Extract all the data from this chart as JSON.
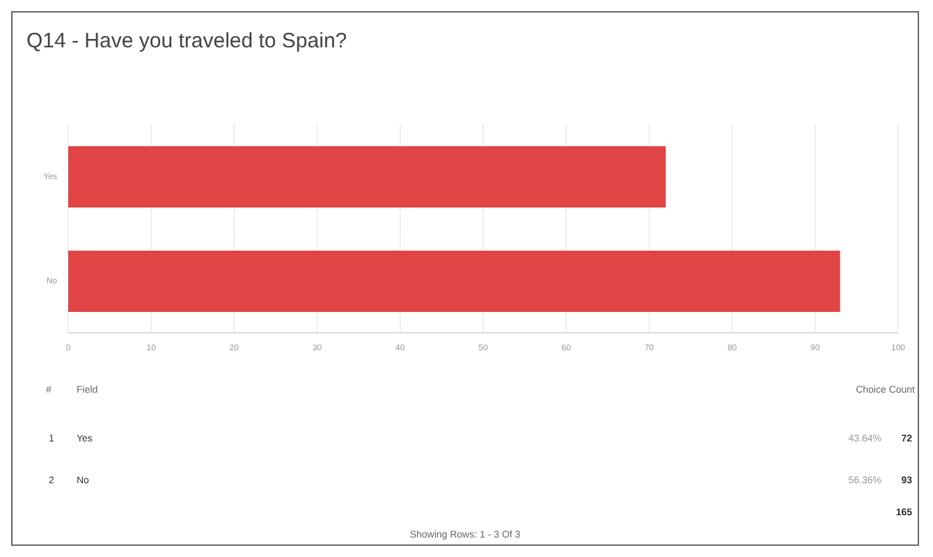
{
  "chart_data": {
    "type": "bar",
    "orientation": "horizontal",
    "title": "Q14 - Have you traveled to Spain?",
    "categories": [
      "Yes",
      "No"
    ],
    "values": [
      72,
      93
    ],
    "color": "#e04444",
    "xlim": [
      0,
      100
    ],
    "xticks": [
      0,
      10,
      20,
      30,
      40,
      50,
      60,
      70,
      80,
      90,
      100
    ],
    "grid": "x",
    "annotations": [
      "#",
      "Field",
      "Choice Count",
      "1",
      "2",
      "43.64%",
      "56.36%",
      "165",
      "Showing Rows: 1 - 3 Of 3",
      "72",
      "93"
    ]
  }
}
